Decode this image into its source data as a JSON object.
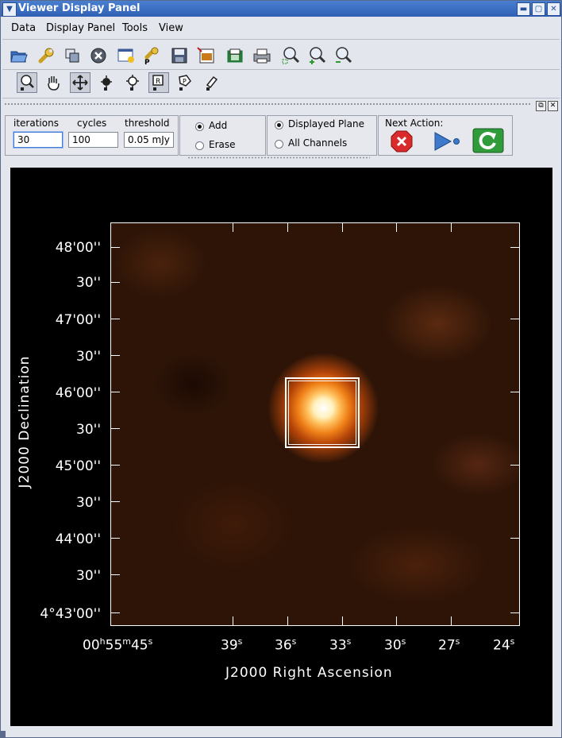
{
  "window": {
    "title": "Viewer Display Panel",
    "menu_glyph": "▼",
    "min_glyph": "▬",
    "max_glyph": "▢",
    "close_glyph": "✕"
  },
  "menubar": {
    "items": [
      "Data",
      "Display Panel",
      "Tools",
      "View"
    ]
  },
  "toolbar": {
    "icons": [
      "open-folder-icon",
      "wrench-icon",
      "copy-panels-icon",
      "close-circle-icon",
      "new-panel-icon",
      "panel-wrench-icon",
      "save-icon",
      "export-image-icon",
      "print-preview-icon",
      "printer-icon",
      "zoom-fit-icon",
      "zoom-in-icon",
      "zoom-out-icon"
    ]
  },
  "mouse_tools": {
    "icons": [
      "zoom-tool-icon",
      "pan-hand-icon",
      "move-arrows-icon",
      "contrast-tool-icon",
      "colormap-tool-icon",
      "rectangle-region-icon",
      "polygon-region-icon",
      "point-tool-icon"
    ]
  },
  "clean": {
    "iterations_label": "iterations",
    "iterations_value": "30",
    "cycles_label": "cycles",
    "cycles_value": "100",
    "threshold_label": "threshold",
    "threshold_value": "0.05 mJy",
    "mask_add_label": "Add",
    "mask_erase_label": "Erase",
    "plane_displayed_label": "Displayed Plane",
    "plane_all_label": "All Channels",
    "next_action_label": "Next Action:",
    "colors": {
      "stop": "#d92b2b",
      "continue": "#3e7ac9",
      "redo": "#2f9b3a"
    }
  },
  "image": {
    "dec_labels": [
      "48'00''",
      "30''",
      "47'00''",
      "30''",
      "46'00''",
      "30''",
      "45'00''",
      "30''",
      "44'00''",
      "30''",
      "4°43'00''"
    ],
    "ra_labels": [
      "00h55m45s",
      "39s",
      "36s",
      "33s",
      "30s",
      "27s",
      "24s"
    ],
    "ra_first": {
      "hh": "00",
      "h": "h",
      "mm": "55",
      "m": "m",
      "ss": "45",
      "s": "s"
    },
    "ra_seconds": [
      "39",
      "36",
      "33",
      "30",
      "27",
      "24"
    ],
    "ra_s_unit": "s",
    "x_title": "J2000 Right Ascension",
    "y_title": "J2000 Declination"
  }
}
